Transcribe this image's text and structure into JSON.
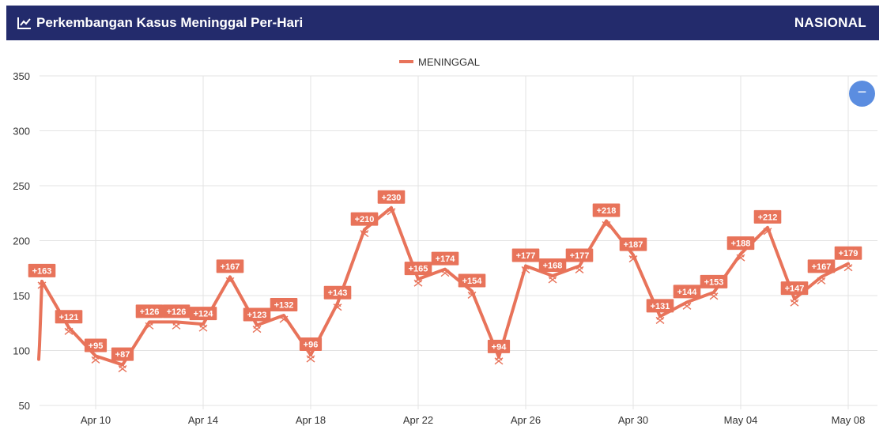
{
  "header": {
    "title": "Perkembangan Kasus Meninggal Per-Hari",
    "badge": "NASIONAL",
    "icon": "line-chart-icon",
    "bg_color": "#232b6c"
  },
  "zoom_button": {
    "icon": "minus-icon",
    "glyph": "−",
    "color": "#5b8de0"
  },
  "chart_data": {
    "type": "line",
    "legend_position": "top-center",
    "grid": true,
    "ylim": [
      50,
      350
    ],
    "yticks": [
      "50",
      "100",
      "150",
      "200",
      "250",
      "300",
      "350"
    ],
    "xticks": [
      "Apr 10",
      "Apr 14",
      "Apr 18",
      "Apr 22",
      "Apr 26",
      "Apr 30",
      "May 04",
      "May 08"
    ],
    "x": [
      "Apr 08",
      "Apr 09",
      "Apr 10",
      "Apr 11",
      "Apr 12",
      "Apr 13",
      "Apr 14",
      "Apr 15",
      "Apr 16",
      "Apr 17",
      "Apr 18",
      "Apr 19",
      "Apr 20",
      "Apr 21",
      "Apr 22",
      "Apr 23",
      "Apr 24",
      "Apr 25",
      "Apr 26",
      "Apr 27",
      "Apr 28",
      "Apr 29",
      "Apr 30",
      "May 01",
      "May 02",
      "May 03",
      "May 04",
      "May 05",
      "May 06",
      "May 07",
      "May 08"
    ],
    "series": [
      {
        "name": "MENINGGAL",
        "color": "#e8735a",
        "values": [
          163,
          121,
          95,
          87,
          126,
          126,
          124,
          167,
          123,
          132,
          96,
          143,
          210,
          230,
          165,
          174,
          154,
          94,
          177,
          168,
          177,
          218,
          187,
          131,
          144,
          153,
          188,
          212,
          147,
          167,
          179
        ],
        "labels": [
          "+163",
          "+121",
          "+95",
          "+87",
          "+126",
          "+126",
          "+124",
          "+167",
          "+123",
          "+132",
          "+96",
          "+143",
          "+210",
          "+230",
          "+165",
          "+174",
          "+154",
          "+94",
          "+177",
          "+168",
          "+177",
          "+218",
          "+187",
          "+131",
          "+144",
          "+153",
          "+188",
          "+212",
          "+147",
          "+167",
          "+179"
        ]
      }
    ]
  }
}
